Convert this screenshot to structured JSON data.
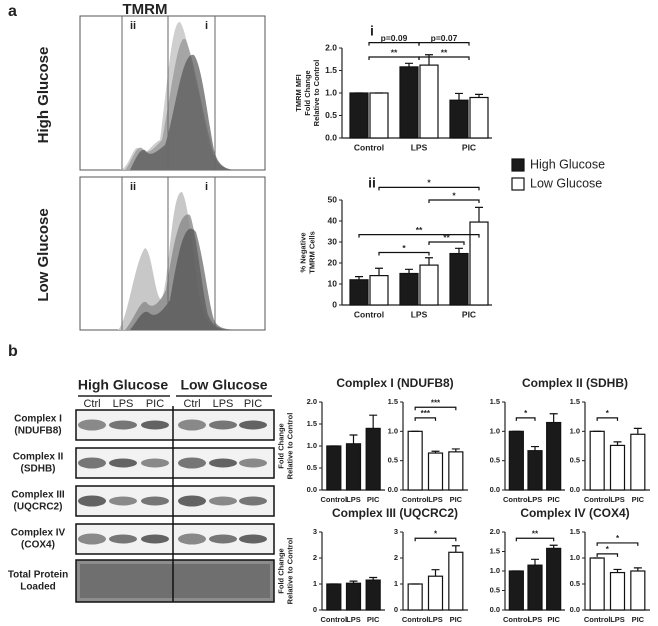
{
  "figure": {
    "panel_a": "a",
    "panel_b": "b",
    "flow_title": "TMRM",
    "flow_rows": [
      "High Glucose",
      "Low Glucose"
    ],
    "gates": [
      "ii",
      "i",
      "ii",
      "i"
    ],
    "blot_groups": [
      "High Glucose",
      "Low Glucose"
    ],
    "blot_lanes": [
      "Ctrl",
      "LPS",
      "PIC",
      "Ctrl",
      "LPS",
      "PIC"
    ],
    "blot_rows": [
      [
        "Complex I",
        "(NDUFB8)"
      ],
      [
        "Complex II",
        "(SDHB)"
      ],
      [
        "Complex III",
        "(UQCRC2)"
      ],
      [
        "Complex IV",
        "(COX4)"
      ],
      [
        "Total Protein",
        "Loaded"
      ]
    ]
  },
  "chart_data": [
    {
      "type": "bar",
      "label": "i",
      "ylabel": [
        "TMRM MFI",
        "Fold Change",
        "Relative to Control"
      ],
      "categories": [
        "Control",
        "LPS",
        "PIC"
      ],
      "series": [
        {
          "name": "High Glucose",
          "color": "#1a1a1a",
          "values": [
            1.0,
            1.58,
            0.84
          ],
          "errors": [
            0,
            0.08,
            0.15
          ]
        },
        {
          "name": "Low Glucose",
          "color": "#ffffff",
          "values": [
            1.0,
            1.62,
            0.9
          ],
          "errors": [
            0,
            0.23,
            0.07
          ]
        }
      ],
      "ylim": [
        0,
        2
      ],
      "yticks": [
        {
          "value": 0,
          "label": "0.0"
        },
        {
          "value": 0.5,
          "label": "0.5"
        },
        {
          "value": 1,
          "label": "1.0"
        },
        {
          "value": 1.5,
          "label": "1.5"
        },
        {
          "value": 2,
          "label": "2.0"
        }
      ],
      "annotations": [
        "p=0.09",
        "p=0.07",
        "**",
        "**"
      ]
    },
    {
      "type": "bar",
      "label": "ii",
      "ylabel": [
        "% Negative",
        "TMRM Cells"
      ],
      "categories": [
        "Control",
        "LPS",
        "PIC"
      ],
      "series": [
        {
          "color": "#1a1a1a",
          "values": [
            12,
            15,
            24.5
          ],
          "errors": [
            1.5,
            2,
            2.5
          ]
        },
        {
          "color": "#ffffff",
          "values": [
            14,
            19,
            39.5
          ],
          "errors": [
            3.5,
            3.5,
            7
          ]
        }
      ],
      "ylim": [
        0,
        50
      ],
      "yticks": [
        0,
        10,
        20,
        30,
        40,
        50
      ],
      "annotations": [
        "*",
        "*",
        "**",
        "**",
        "*"
      ]
    },
    {
      "type": "bar",
      "title": "Complex I (NDUFB8)",
      "ylabel": [
        "Fold Change",
        "Relative to Control"
      ],
      "categories": [
        "Control",
        "LPS",
        "PIC"
      ],
      "series": [
        {
          "color": "#1a1a1a",
          "values": [
            1.0,
            1.05,
            1.4
          ],
          "errors": [
            0,
            0.2,
            0.3
          ]
        }
      ],
      "ylim": [
        0,
        2
      ],
      "yticks": [
        {
          "value": 0,
          "label": "0.0"
        },
        {
          "value": 0.5,
          "label": "0.5"
        },
        {
          "value": 1,
          "label": "1.0"
        },
        {
          "value": 1.5,
          "label": "1.5"
        },
        {
          "value": 2,
          "label": "2.0"
        }
      ],
      "annotations": []
    },
    {
      "type": "bar",
      "categories": [
        "Control",
        "LPS",
        "PIC"
      ],
      "series": [
        {
          "color": "#ffffff",
          "values": [
            1.0,
            0.63,
            0.65
          ],
          "errors": [
            0,
            0.03,
            0.05
          ]
        }
      ],
      "ylim": [
        0,
        1.5
      ],
      "yticks": [
        {
          "value": 0,
          "label": "0.0"
        },
        {
          "value": 0.5,
          "label": "0.5"
        },
        {
          "value": 1,
          "label": "1.0"
        },
        {
          "value": 1.5,
          "label": "1.5"
        }
      ],
      "annotations": [
        "***",
        "***"
      ]
    },
    {
      "type": "bar",
      "title": "Complex II (SDHB)",
      "categories": [
        "Control",
        "LPS",
        "PIC"
      ],
      "series": [
        {
          "color": "#1a1a1a",
          "values": [
            1.0,
            0.67,
            1.15
          ],
          "errors": [
            0,
            0.07,
            0.15
          ]
        }
      ],
      "ylim": [
        0,
        1.5
      ],
      "yticks": [
        {
          "value": 0,
          "label": "0.0"
        },
        {
          "value": 0.5,
          "label": "0.5"
        },
        {
          "value": 1,
          "label": "1.0"
        },
        {
          "value": 1.5,
          "label": "1.5"
        }
      ],
      "annotations": [
        "*"
      ]
    },
    {
      "type": "bar",
      "categories": [
        "Control",
        "LPS",
        "PIC"
      ],
      "series": [
        {
          "color": "#ffffff",
          "values": [
            1.0,
            0.76,
            0.95
          ],
          "errors": [
            0,
            0.06,
            0.1
          ]
        }
      ],
      "ylim": [
        0,
        1.5
      ],
      "yticks": [
        {
          "value": 0,
          "label": "0.0"
        },
        {
          "value": 0.5,
          "label": "0.5"
        },
        {
          "value": 1,
          "label": "1.0"
        },
        {
          "value": 1.5,
          "label": "1.5"
        }
      ],
      "annotations": [
        "*"
      ]
    },
    {
      "type": "bar",
      "title": "Complex III (UQCRC2)",
      "ylabel": [
        "Fold Change",
        "Relative to Control"
      ],
      "categories": [
        "Control",
        "LPS",
        "PIC"
      ],
      "series": [
        {
          "color": "#1a1a1a",
          "values": [
            1.0,
            1.03,
            1.15
          ],
          "errors": [
            0,
            0.08,
            0.1
          ]
        }
      ],
      "ylim": [
        0,
        3
      ],
      "yticks": [
        0,
        1,
        2,
        3
      ],
      "annotations": []
    },
    {
      "type": "bar",
      "categories": [
        "Control",
        "LPS",
        "PIC"
      ],
      "series": [
        {
          "color": "#ffffff",
          "values": [
            1.0,
            1.3,
            2.22
          ],
          "errors": [
            0,
            0.25,
            0.25
          ]
        }
      ],
      "ylim": [
        0,
        3
      ],
      "yticks": [
        0,
        1,
        2,
        3
      ],
      "annotations": [
        "*"
      ]
    },
    {
      "type": "bar",
      "title": "Complex IV (COX4)",
      "categories": [
        "Control",
        "LPS",
        "PIC"
      ],
      "series": [
        {
          "color": "#1a1a1a",
          "values": [
            1.0,
            1.15,
            1.58
          ],
          "errors": [
            0,
            0.15,
            0.08
          ]
        }
      ],
      "ylim": [
        0,
        2
      ],
      "yticks": [
        {
          "value": 0,
          "label": "0.0"
        },
        {
          "value": 0.5,
          "label": "0.5"
        },
        {
          "value": 1,
          "label": "1.0"
        },
        {
          "value": 1.5,
          "label": "1.5"
        },
        {
          "value": 2,
          "label": "2.0"
        }
      ],
      "annotations": [
        "**"
      ]
    },
    {
      "type": "bar",
      "categories": [
        "Control",
        "LPS",
        "PIC"
      ],
      "series": [
        {
          "color": "#ffffff",
          "values": [
            1.0,
            0.72,
            0.75
          ],
          "errors": [
            0,
            0.06,
            0.06
          ]
        }
      ],
      "ylim": [
        0,
        1.5
      ],
      "yticks": [
        {
          "value": 0,
          "label": "0.0"
        },
        {
          "value": 0.5,
          "label": "0.5"
        },
        {
          "value": 1,
          "label": "1.0"
        },
        {
          "value": 1.5,
          "label": "1.5"
        }
      ],
      "annotations": [
        "*",
        "*"
      ]
    }
  ]
}
